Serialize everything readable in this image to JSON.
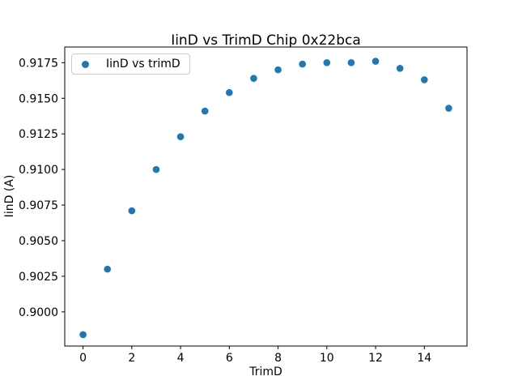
{
  "chart_data": {
    "type": "scatter",
    "title": "IinD vs TrimD Chip 0x22bca",
    "xlabel": "TrimD",
    "ylabel": "IinD (A)",
    "x": [
      0,
      1,
      2,
      3,
      4,
      5,
      6,
      7,
      8,
      9,
      10,
      11,
      12,
      13,
      14,
      15
    ],
    "series": [
      {
        "name": "IinD vs trimD",
        "color": "#1f77b4",
        "marker": "circle",
        "values": [
          0.8984,
          0.903,
          0.9071,
          0.91,
          0.9123,
          0.9141,
          0.9154,
          0.9164,
          0.917,
          0.9174,
          0.9175,
          0.9175,
          0.9176,
          0.9171,
          0.9163,
          0.9143
        ]
      }
    ],
    "xlim": [
      -0.75,
      15.75
    ],
    "ylim": [
      0.8976,
      0.9186
    ],
    "xticks": [
      0,
      2,
      4,
      6,
      8,
      10,
      12,
      14
    ],
    "yticks": [
      0.9,
      0.9025,
      0.905,
      0.9075,
      0.91,
      0.9125,
      0.915,
      0.9175
    ],
    "ytick_decimals": 4,
    "grid": false,
    "legend": {
      "position": "upper-left",
      "label": "IinD vs trimD",
      "marker": "circle",
      "marker_color": "#1f77b4"
    }
  },
  "colors": {
    "marker": "#1f77b4",
    "text": "#000000",
    "spine": "#000000",
    "legend_border": "#cccccc",
    "background": "#ffffff"
  }
}
